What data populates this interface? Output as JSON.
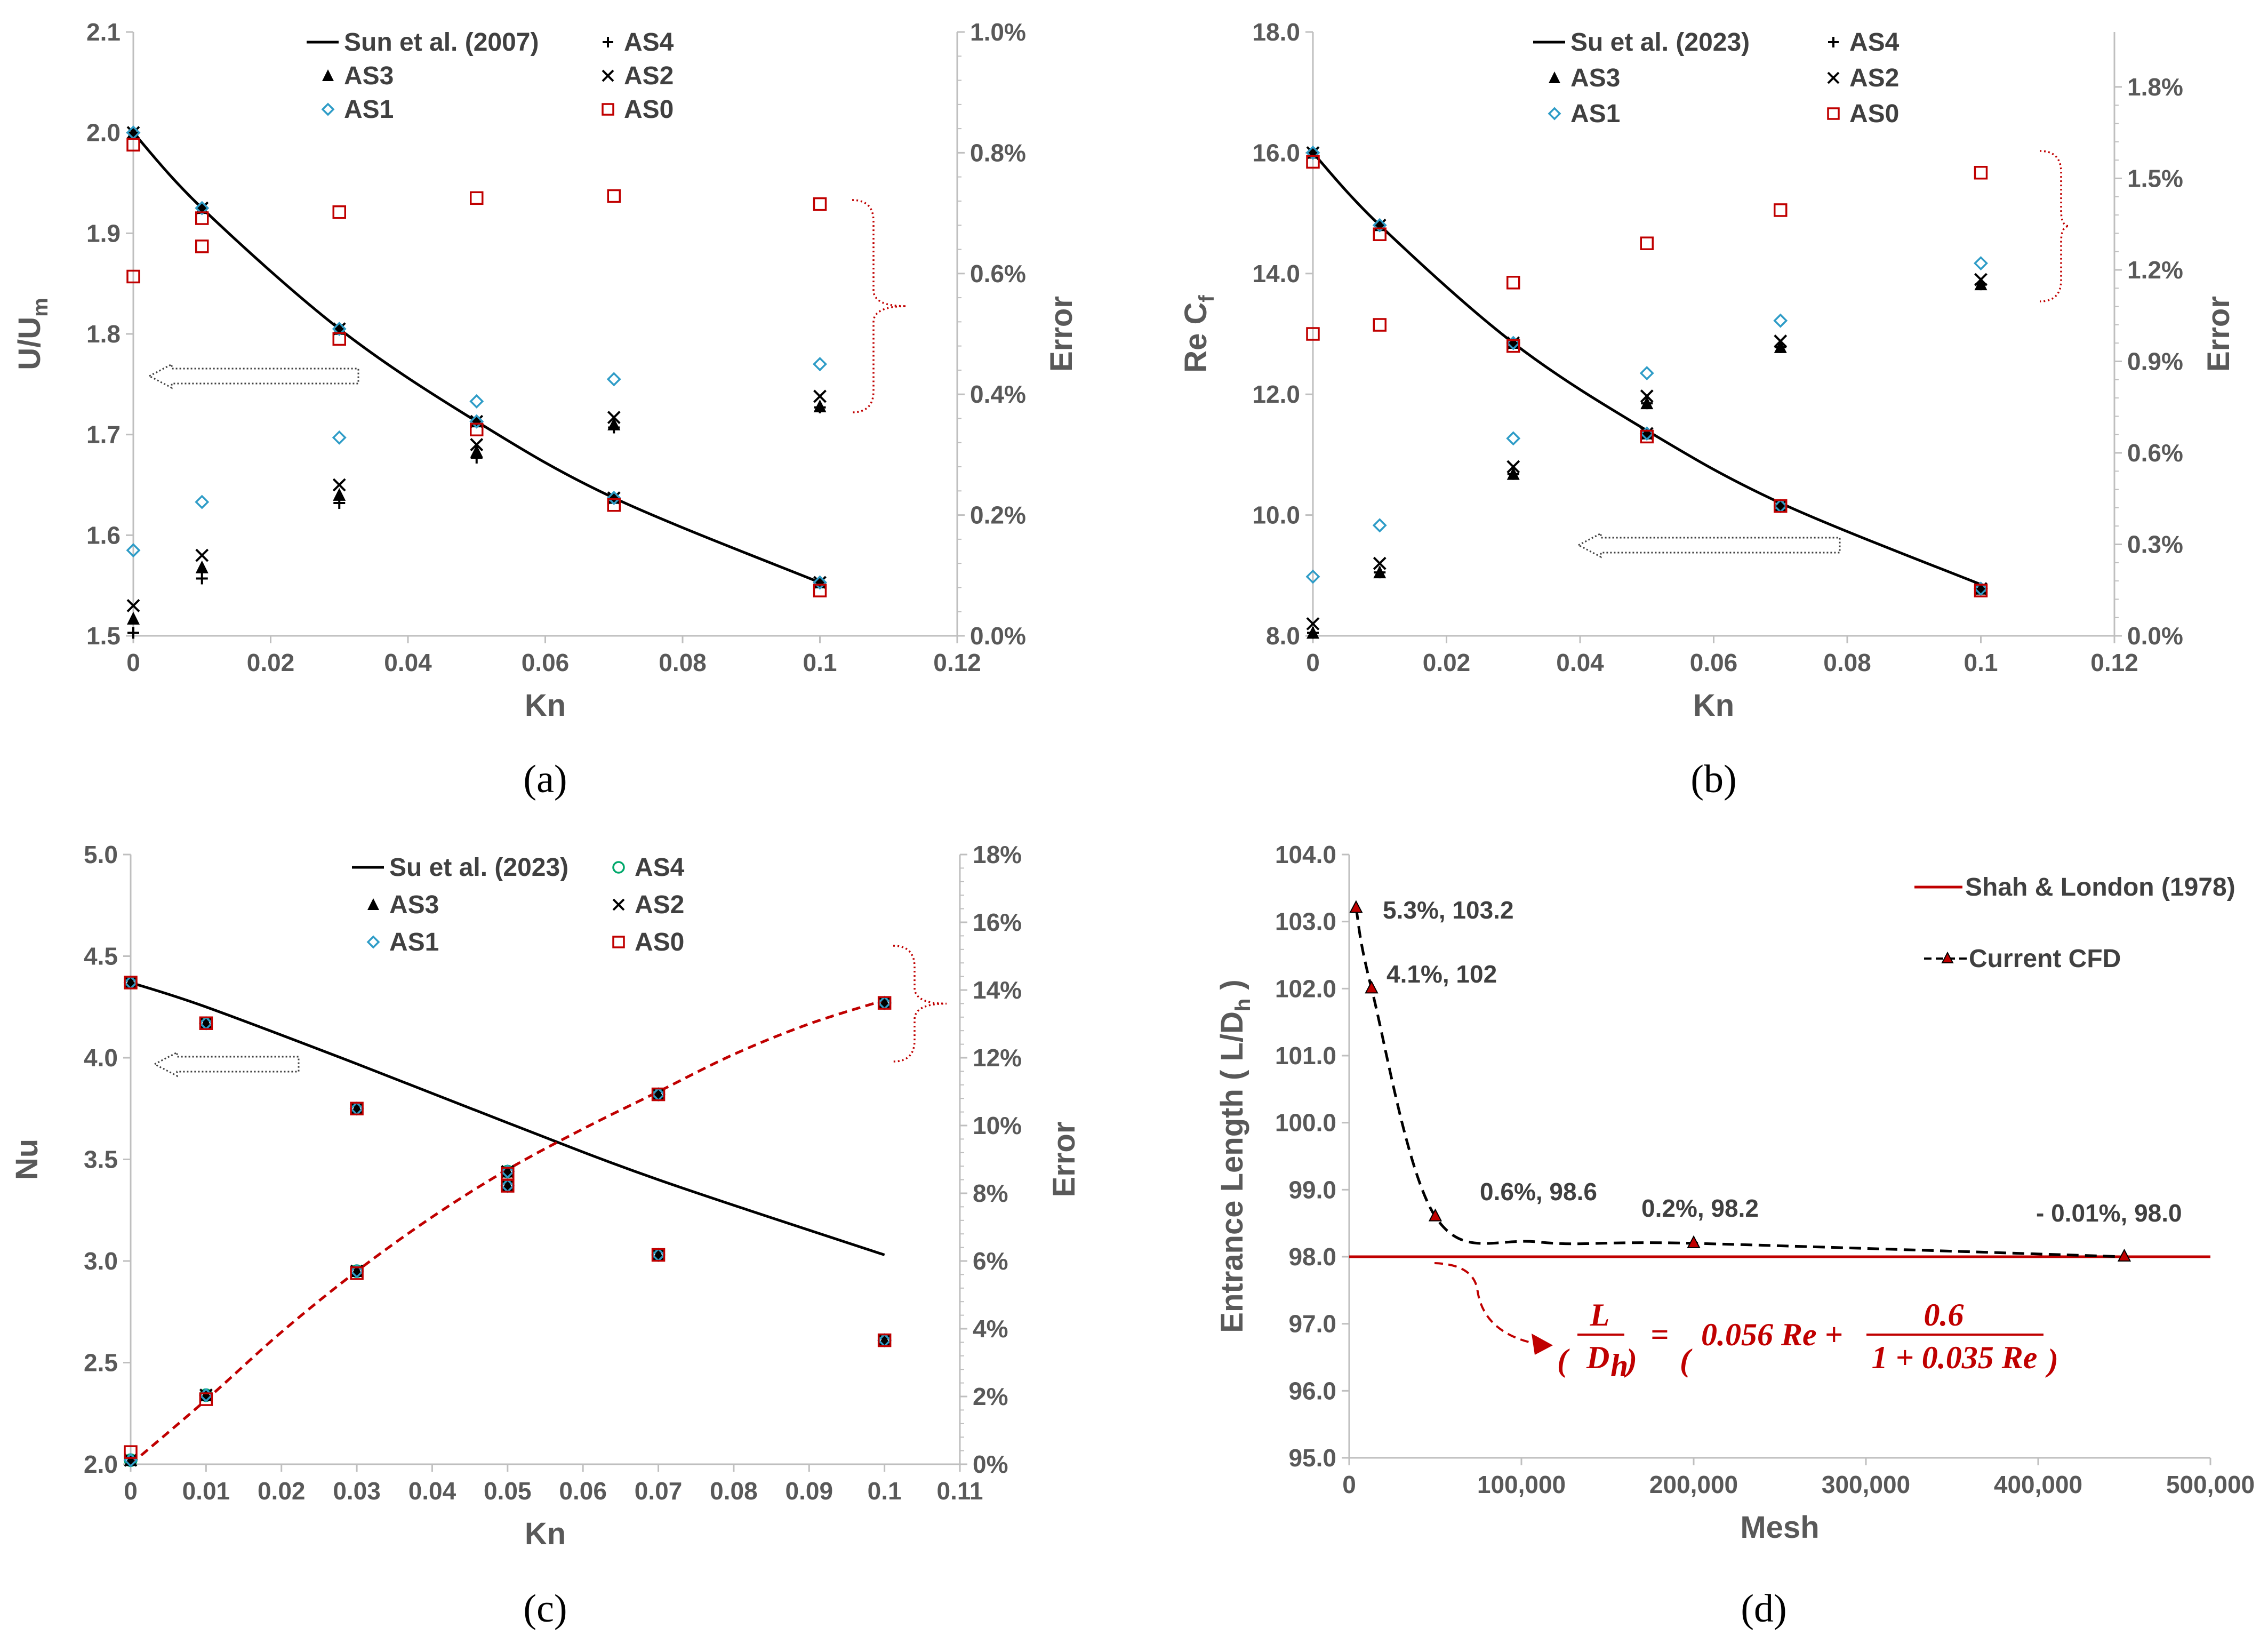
{
  "colors": {
    "axis": "#bfbfbf",
    "text": "#595959",
    "black": "#000000",
    "red": "#c00000",
    "cyan": "#2e9cc7",
    "green": "#00a86b"
  },
  "chart_data": [
    {
      "panel": "(a)",
      "type": "scatter",
      "xlabel": "Kn",
      "ylabel_main": "U/U",
      "ylabel_sub": "m",
      "y2label": "Error",
      "xlim": [
        0,
        0.12
      ],
      "ylim": [
        1.5,
        2.1
      ],
      "y2lim": [
        0,
        0.01
      ],
      "xticks": [
        0,
        0.02,
        0.04,
        0.06,
        0.08,
        0.1,
        0.12
      ],
      "xtick_labels": [
        "0",
        "0.02",
        "0.04",
        "0.06",
        "0.08",
        "0.1",
        "0.12"
      ],
      "yticks": [
        1.5,
        1.6,
        1.7,
        1.8,
        1.9,
        2.0,
        2.1
      ],
      "ytick_labels": [
        "1.5",
        "1.6",
        "1.7",
        "1.8",
        "1.9",
        "2.0",
        "2.1"
      ],
      "y2ticks": [
        0,
        0.002,
        0.004,
        0.006,
        0.008,
        0.01
      ],
      "y2tick_labels": [
        "0.0%",
        "0.2%",
        "0.4%",
        "0.6%",
        "0.8%",
        "1.0%"
      ],
      "legend": [
        "Sun et al. (2007)",
        "AS4",
        "AS3",
        "AS2",
        "AS1",
        "AS0"
      ],
      "line": {
        "name": "Sun et al. (2007)",
        "x": [
          0,
          0.01,
          0.03,
          0.05,
          0.07,
          0.1
        ],
        "y": [
          2.0,
          1.925,
          1.805,
          1.713,
          1.637,
          1.553
        ]
      },
      "series": [
        {
          "name": "AS4",
          "marker": "plus",
          "axis": "left",
          "x": [
            0,
            0,
            0.01,
            0.01,
            0.03,
            0.03,
            0.05,
            0.05,
            0.07,
            0.07,
            0.1,
            0.1
          ],
          "y": [
            1.503,
            2.0,
            1.557,
            1.925,
            1.632,
            1.805,
            1.677,
            1.713,
            1.707,
            1.637,
            1.727,
            1.553
          ]
        },
        {
          "name": "AS3",
          "marker": "triangle",
          "axis": "left",
          "x": [
            0,
            0,
            0.01,
            0.01,
            0.03,
            0.03,
            0.05,
            0.05,
            0.07,
            0.07,
            0.1,
            0.1
          ],
          "y": [
            1.517,
            2.0,
            1.568,
            1.925,
            1.64,
            1.805,
            1.683,
            1.713,
            1.71,
            1.637,
            1.728,
            1.553
          ]
        },
        {
          "name": "AS2",
          "marker": "cross",
          "axis": "left",
          "x": [
            0,
            0,
            0.01,
            0.01,
            0.03,
            0.03,
            0.05,
            0.05,
            0.07,
            0.07,
            0.1,
            0.1
          ],
          "y": [
            1.53,
            2.0,
            1.58,
            1.925,
            1.65,
            1.805,
            1.69,
            1.713,
            1.717,
            1.637,
            1.738,
            1.553
          ]
        },
        {
          "name": "AS1",
          "marker": "diamond",
          "axis": "left",
          "x": [
            0,
            0,
            0.01,
            0.01,
            0.03,
            0.03,
            0.05,
            0.05,
            0.07,
            0.07,
            0.1,
            0.1
          ],
          "y": [
            1.585,
            2.0,
            1.633,
            1.925,
            1.697,
            1.805,
            1.733,
            1.713,
            1.755,
            1.637,
            1.77,
            1.553
          ]
        },
        {
          "name": "AS0",
          "marker": "square",
          "axis": "left",
          "x": [
            0,
            0,
            0.01,
            0.01,
            0.03,
            0.03,
            0.05,
            0.05,
            0.07,
            0.07,
            0.1,
            0.1
          ],
          "y": [
            1.857,
            1.988,
            1.887,
            1.915,
            1.921,
            1.795,
            1.935,
            1.705,
            1.937,
            1.63,
            1.929,
            1.545
          ]
        }
      ]
    },
    {
      "panel": "(b)",
      "type": "scatter",
      "xlabel": "Kn",
      "ylabel_main": "Re  C",
      "ylabel_sub": "f",
      "y2label": "Error",
      "xlim": [
        0,
        0.12
      ],
      "ylim": [
        8,
        18
      ],
      "y2lim": [
        0,
        0.0198
      ],
      "xticks": [
        0,
        0.02,
        0.04,
        0.06,
        0.08,
        0.1,
        0.12
      ],
      "xtick_labels": [
        "0",
        "0.02",
        "0.04",
        "0.06",
        "0.08",
        "0.1",
        "0.12"
      ],
      "yticks": [
        8,
        10,
        12,
        14,
        16,
        18
      ],
      "ytick_labels": [
        "8.0",
        "10.0",
        "12.0",
        "14.0",
        "16.0",
        "18.0"
      ],
      "y2ticks": [
        0,
        0.003,
        0.006,
        0.009,
        0.012,
        0.015,
        0.018
      ],
      "y2tick_labels": [
        "0.0%",
        "0.3%",
        "0.6%",
        "0.9%",
        "1.2%",
        "1.5%",
        "1.8%"
      ],
      "legend": [
        "Su et al. (2023)",
        "AS4",
        "AS3",
        "AS2",
        "AS1",
        "AS0"
      ],
      "line": {
        "name": "Su et al. (2023)",
        "x": [
          0,
          0.01,
          0.03,
          0.05,
          0.07,
          0.1
        ],
        "y": [
          16.0,
          14.8,
          12.85,
          11.4,
          10.2,
          8.85
        ]
      },
      "series": [
        {
          "name": "AS4",
          "marker": "plus",
          "axis": "left",
          "x": [
            0,
            0,
            0.01,
            0.01,
            0.03,
            0.03,
            0.05,
            0.05,
            0.07,
            0.07,
            0.1,
            0.1
          ],
          "y": [
            8.05,
            16.0,
            9.05,
            14.8,
            10.68,
            12.85,
            11.85,
            11.35,
            12.78,
            10.15,
            13.82,
            8.78
          ]
        },
        {
          "name": "AS3",
          "marker": "triangle",
          "axis": "left",
          "x": [
            0,
            0,
            0.01,
            0.01,
            0.03,
            0.03,
            0.05,
            0.05,
            0.07,
            0.07,
            0.1,
            0.1
          ],
          "y": [
            8.05,
            16.0,
            9.05,
            14.8,
            10.68,
            12.85,
            11.85,
            11.35,
            12.78,
            10.15,
            13.82,
            8.78
          ]
        },
        {
          "name": "AS2",
          "marker": "cross",
          "axis": "left",
          "x": [
            0,
            0,
            0.01,
            0.01,
            0.03,
            0.03,
            0.05,
            0.05,
            0.07,
            0.07,
            0.1,
            0.1
          ],
          "y": [
            8.2,
            16.0,
            9.2,
            14.8,
            10.8,
            12.85,
            11.97,
            11.35,
            12.88,
            10.15,
            13.9,
            8.78
          ]
        },
        {
          "name": "AS1",
          "marker": "diamond",
          "axis": "left",
          "x": [
            0,
            0,
            0.01,
            0.01,
            0.03,
            0.03,
            0.05,
            0.05,
            0.07,
            0.07,
            0.1,
            0.1
          ],
          "y": [
            8.98,
            16.0,
            9.83,
            14.8,
            11.27,
            12.85,
            12.35,
            11.35,
            13.22,
            10.15,
            14.17,
            8.78
          ]
        },
        {
          "name": "AS0",
          "marker": "square",
          "axis": "left",
          "x": [
            0,
            0,
            0.01,
            0.01,
            0.03,
            0.03,
            0.05,
            0.05,
            0.07,
            0.07,
            0.1,
            0.1
          ],
          "y": [
            13.0,
            15.85,
            13.15,
            14.65,
            13.85,
            12.8,
            14.5,
            11.3,
            15.05,
            10.15,
            15.67,
            8.75
          ]
        }
      ]
    },
    {
      "panel": "(c)",
      "type": "scatter",
      "xlabel": "Kn",
      "ylabel_main": "Nu",
      "ylabel_sub": "",
      "y2label": "Error",
      "xlim": [
        0,
        0.11
      ],
      "ylim": [
        2.0,
        5.0
      ],
      "y2lim": [
        0,
        0.18
      ],
      "xticks": [
        0,
        0.01,
        0.02,
        0.03,
        0.04,
        0.05,
        0.06,
        0.07,
        0.08,
        0.09,
        0.1,
        0.11
      ],
      "xtick_labels": [
        "0",
        "0.01",
        "0.02",
        "0.03",
        "0.04",
        "0.05",
        "0.06",
        "0.07",
        "0.08",
        "0.09",
        "0.1",
        "0.11"
      ],
      "yticks": [
        2.0,
        2.5,
        3.0,
        3.5,
        4.0,
        4.5,
        5.0
      ],
      "ytick_labels": [
        "2.0",
        "2.5",
        "3.0",
        "3.5",
        "4.0",
        "4.5",
        "5.0"
      ],
      "y2ticks": [
        0,
        0.02,
        0.04,
        0.06,
        0.08,
        0.1,
        0.12,
        0.14,
        0.16,
        0.18
      ],
      "y2tick_labels": [
        "0%",
        "2%",
        "4%",
        "6%",
        "8%",
        "10%",
        "12%",
        "14%",
        "16%",
        "18%"
      ],
      "legend": [
        "Su et al. (2023)",
        "AS4",
        "AS3",
        "AS2",
        "AS1",
        "AS0"
      ],
      "line": {
        "name": "Su et al. (2023)",
        "x": [
          0,
          0.01,
          0.03,
          0.05,
          0.07,
          0.1
        ],
        "y": [
          4.37,
          4.25,
          3.97,
          3.68,
          3.4,
          3.03
        ]
      },
      "error_trend": {
        "x": [
          0,
          0.01,
          0.02,
          0.03,
          0.04,
          0.05,
          0.06,
          0.07,
          0.08,
          0.09,
          0.1
        ],
        "y": [
          0,
          0.019,
          0.039,
          0.057,
          0.073,
          0.087,
          0.099,
          0.11,
          0.121,
          0.13,
          0.137
        ]
      },
      "series": [
        {
          "name": "AS4",
          "marker": "circle",
          "axis": "left",
          "x": [
            0,
            0,
            0.01,
            0.01,
            0.03,
            0.03,
            0.05,
            0.05,
            0.07,
            0.07,
            0.1,
            0.1
          ],
          "y": [
            4.37,
            2.02,
            4.17,
            2.34,
            3.75,
            2.95,
            3.44,
            3.37,
            3.82,
            3.03,
            4.27,
            2.61
          ]
        },
        {
          "name": "AS3",
          "marker": "triangle",
          "axis": "left",
          "x": [
            0,
            0,
            0.01,
            0.01,
            0.03,
            0.03,
            0.05,
            0.05,
            0.07,
            0.07,
            0.1,
            0.1
          ],
          "y": [
            4.37,
            2.02,
            4.17,
            2.34,
            3.75,
            2.95,
            3.44,
            3.37,
            3.82,
            3.03,
            4.27,
            2.61
          ]
        },
        {
          "name": "AS2",
          "marker": "cross",
          "axis": "left",
          "x": [
            0,
            0,
            0.01,
            0.01,
            0.03,
            0.03,
            0.05,
            0.05,
            0.07,
            0.07,
            0.1,
            0.1
          ],
          "y": [
            4.37,
            2.02,
            4.17,
            2.34,
            3.75,
            2.95,
            3.44,
            3.37,
            3.82,
            3.03,
            4.27,
            2.61
          ]
        },
        {
          "name": "AS1",
          "marker": "diamond",
          "axis": "left",
          "x": [
            0,
            0,
            0.01,
            0.01,
            0.03,
            0.03,
            0.05,
            0.05,
            0.07,
            0.07,
            0.1,
            0.1
          ],
          "y": [
            4.37,
            2.02,
            4.17,
            2.34,
            3.75,
            2.95,
            3.44,
            3.37,
            3.82,
            3.03,
            4.27,
            2.61
          ]
        },
        {
          "name": "AS0",
          "marker": "square",
          "axis": "left",
          "x": [
            0,
            0,
            0.01,
            0.01,
            0.03,
            0.03,
            0.05,
            0.05,
            0.07,
            0.07,
            0.1,
            0.1
          ],
          "y": [
            4.37,
            2.06,
            4.17,
            2.32,
            3.75,
            2.94,
            3.43,
            3.37,
            3.82,
            3.03,
            4.27,
            2.61
          ]
        }
      ]
    },
    {
      "panel": "(d)",
      "type": "line",
      "xlabel": "Mesh",
      "ylabel_main": "Entrance Length  ( L/D",
      "ylabel_sub": "h",
      "ylabel_tail": " )",
      "xlim": [
        0,
        500000
      ],
      "ylim": [
        95,
        104
      ],
      "xticks": [
        0,
        100000,
        200000,
        300000,
        400000,
        500000
      ],
      "xtick_labels": [
        "0",
        "100,000",
        "200,000",
        "300,000",
        "400,000",
        "500,000"
      ],
      "yticks": [
        95,
        96,
        97,
        98,
        99,
        100,
        101,
        102,
        103,
        104
      ],
      "ytick_labels": [
        "95.0",
        "96.0",
        "97.0",
        "98.0",
        "99.0",
        "100.0",
        "101.0",
        "102.0",
        "103.0",
        "104.0"
      ],
      "legend": [
        "Shah & London (1978)",
        "Current CFD"
      ],
      "reference": {
        "name": "Shah & London (1978)",
        "x": [
          0,
          500000
        ],
        "y": [
          98.0,
          98.0
        ]
      },
      "series": [
        {
          "name": "Current CFD",
          "x": [
            4000,
            13000,
            50000,
            200000,
            450000
          ],
          "y": [
            103.2,
            102.0,
            98.6,
            98.2,
            98.0
          ]
        }
      ],
      "annotations": [
        "5.3%, 103.2",
        "4.1%, 102",
        "0.6%, 98.6",
        "0.2%, 98.2",
        "- 0.01%, 98.0"
      ],
      "formula": {
        "lhs_num": "L",
        "lhs_den": "D",
        "lhs_den_sub": "h",
        "rhs_a": "0.056 Re +",
        "rhs_num": "0.6",
        "rhs_den": "1 + 0.035 Re"
      }
    }
  ]
}
